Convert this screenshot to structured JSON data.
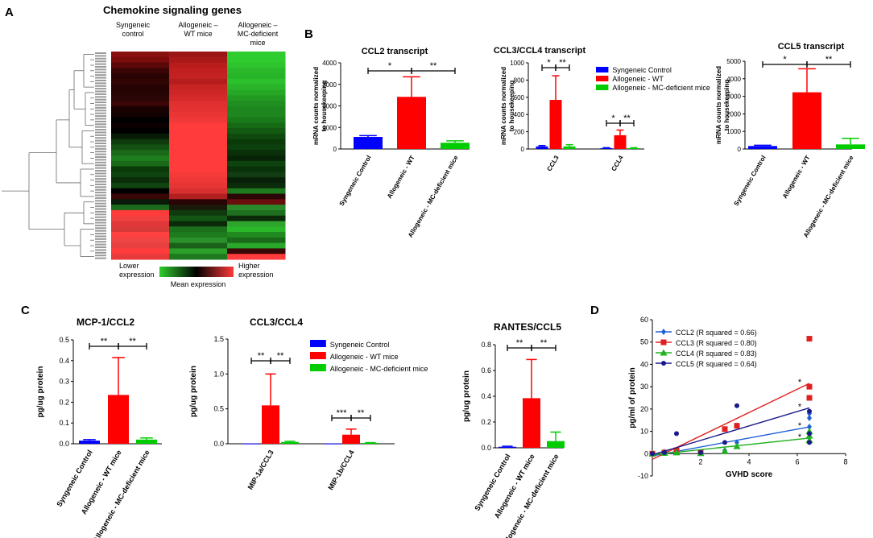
{
  "panels": [
    {
      "label": "A",
      "title": "Chemokine signaling genes",
      "columns": [
        "Syngeneic\ncontrol",
        "Allogeneic –\nWT mice",
        "Allogeneic –\nMC-deficient\nmice"
      ],
      "scale": {
        "low": "Lower\nexpression",
        "mid": "Mean expression",
        "high": "Higher\nexpression"
      },
      "colors": {
        "low": "#2ecc2e",
        "mid": "#000000",
        "high": "#ff3b3b"
      }
    },
    {
      "label": "B"
    },
    {
      "label": "C"
    },
    {
      "label": "D"
    }
  ],
  "legend_b": [
    "Syngeneic Control",
    "Allogeneic - WT",
    "Allogeneic - MC-deficient mice"
  ],
  "legend_c": [
    "Syngeneic Control",
    "Allogeneic - WT mice",
    "Allogeneic - MC-deficient mice"
  ],
  "colors": {
    "syn": "#0000ff",
    "wt": "#ff0000",
    "mc": "#00cc00"
  },
  "chart_data": [
    {
      "id": "A",
      "type": "heatmap",
      "title": "Chemokine signaling genes",
      "columns": [
        "Syngeneic control",
        "Allogeneic – WT mice",
        "Allogeneic – MC-deficient mice"
      ],
      "column_colors": [
        [
          "#8a0f0f",
          "#7a0c0c",
          "#5a0808",
          "#3a0505",
          "#2a0404",
          "#320505",
          "#260303",
          "#240404",
          "#2c0606",
          "#3a0606",
          "#1a0202",
          "#140202",
          "#000000",
          "#0a0000",
          "#000000",
          "#061a06",
          "#0e3a0e",
          "#145214",
          "#1a6a1a",
          "#1e7e1e",
          "#1a6a1a",
          "#0a3a0a",
          "#0e420e",
          "#0a2e0a",
          "#104410",
          "#000000",
          "#3a0707",
          "#0a1a0a",
          "#1c6a1c",
          "#ff3b3b",
          "#f24040",
          "#e03838",
          "#d83a3a",
          "#ff4040",
          "#f04545",
          "#e84040",
          "#ff3b3b",
          "#e83a3a"
        ],
        [
          "#9a1515",
          "#a81818",
          "#b81c1c",
          "#c22020",
          "#c42222",
          "#b51c1c",
          "#c82424",
          "#cc2626",
          "#d42a2a",
          "#e03030",
          "#e43232",
          "#ea3535",
          "#f03838",
          "#ff3b3b",
          "#ff3b3b",
          "#ff3b3b",
          "#ff3b3b",
          "#ff3b3b",
          "#ff3b3b",
          "#ff3b3b",
          "#ff3b3b",
          "#ff3b3b",
          "#f53a3a",
          "#ee3838",
          "#e63535",
          "#d83030",
          "#b02020",
          "#2a0505",
          "#1a1a0a",
          "#0e3a0e",
          "#145514",
          "#0a2a0a",
          "#1c701c",
          "#1e7a1e",
          "#2a902a",
          "#1a601a",
          "#2aa02a",
          "#1e7a1e"
        ],
        [
          "#2ecc2e",
          "#2ecc2e",
          "#2dc42d",
          "#2ab82a",
          "#28b428",
          "#2cc02c",
          "#2ab42a",
          "#26a826",
          "#229a22",
          "#208e20",
          "#1e861e",
          "#1e861e",
          "#1a7a1a",
          "#166a16",
          "#125a12",
          "#0e4a0e",
          "#0a3a0a",
          "#0c400c",
          "#0a300a",
          "#082408",
          "#0e420e",
          "#0a320a",
          "#123c12",
          "#082008",
          "#0a2a0a",
          "#1e7a1e",
          "#2a0606",
          "#6a0e0e",
          "#2a8a2a",
          "#1e701e",
          "#0a2a0a",
          "#2ea42e",
          "#2ab82a",
          "#208a20",
          "#1a6a1a",
          "#2aa82a",
          "#3a0808",
          "#ff3b3b"
        ]
      ]
    },
    {
      "id": "B1",
      "type": "bar",
      "title": "CCL2 transcript",
      "ylabel": "mRNA counts normalized\nto housekeeping",
      "ylim": [
        0,
        4000
      ],
      "yticks": [
        0,
        1000,
        2000,
        3000,
        4000
      ],
      "categories": [
        "Syngeneic Control",
        "Allogeneic - WT",
        "Allogeneic - MC-deficient mice"
      ],
      "values": [
        560,
        2420,
        290
      ],
      "errors": [
        60,
        930,
        90
      ],
      "significance": [
        {
          "from": 0,
          "to": 1,
          "text": "*"
        },
        {
          "from": 1,
          "to": 2,
          "text": "**"
        }
      ]
    },
    {
      "id": "B2",
      "type": "bar",
      "title": "CCL3/CCL4 transcript",
      "ylabel": "mRNA counts normalized\nto housekeeping",
      "ylim": [
        0,
        1000
      ],
      "yticks": [
        0,
        200,
        400,
        600,
        800,
        1000
      ],
      "categories": [
        "CCL3",
        "CCL4"
      ],
      "series": [
        {
          "name": "Syngeneic Control",
          "values": [
            30,
            10
          ],
          "errors": [
            10,
            5
          ]
        },
        {
          "name": "Allogeneic - WT",
          "values": [
            570,
            160
          ],
          "errors": [
            280,
            60
          ]
        },
        {
          "name": "Allogeneic - MC-deficient mice",
          "values": [
            30,
            10
          ],
          "errors": [
            20,
            5
          ]
        }
      ],
      "significance": [
        {
          "group": 0,
          "from": 0,
          "to": 1,
          "text": "*"
        },
        {
          "group": 0,
          "from": 1,
          "to": 2,
          "text": "**"
        },
        {
          "group": 1,
          "from": 0,
          "to": 1,
          "text": "*"
        },
        {
          "group": 1,
          "from": 1,
          "to": 2,
          "text": "**"
        }
      ]
    },
    {
      "id": "B3",
      "type": "bar",
      "title": "CCL5 transcript",
      "ylabel": "mRNA counts normalized\nto housekeeping",
      "ylim": [
        0,
        5000
      ],
      "yticks": [
        0,
        1000,
        2000,
        3000,
        4000,
        5000
      ],
      "categories": [
        "Syngeneic Control",
        "Allogeneic - WT",
        "Allogeneic - MC-deficient mice"
      ],
      "values": [
        170,
        3230,
        260
      ],
      "errors": [
        40,
        1340,
        350
      ],
      "significance": [
        {
          "from": 0,
          "to": 1,
          "text": "*"
        },
        {
          "from": 1,
          "to": 2,
          "text": "**"
        }
      ]
    },
    {
      "id": "C1",
      "type": "bar",
      "title": "MCP-1/CCL2",
      "ylabel": "pg/ug protein",
      "ylim": [
        0,
        0.5
      ],
      "yticks": [
        "0.0",
        "0.1",
        "0.2",
        "0.3",
        "0.4",
        "0.5"
      ],
      "categories": [
        "Syngeneic Control",
        "Allogeneic - WT mice",
        "Allogeneic - MC-deficient mice"
      ],
      "values": [
        0.015,
        0.235,
        0.02
      ],
      "errors": [
        0.005,
        0.18,
        0.008
      ],
      "significance": [
        {
          "from": 0,
          "to": 1,
          "text": "**"
        },
        {
          "from": 1,
          "to": 2,
          "text": "**"
        }
      ]
    },
    {
      "id": "C2",
      "type": "bar",
      "title": "CCL3/CCL4",
      "ylabel": "pg/ug protein",
      "ylim": [
        0,
        1.5
      ],
      "yticks": [
        "0.0",
        "0.5",
        "1.0",
        "1.5"
      ],
      "categories": [
        "MIP-1a/CCL3",
        "MIP-1b/CCL4"
      ],
      "series": [
        {
          "name": "Syngeneic Control",
          "values": [
            0.004,
            0.004
          ],
          "errors": [
            0,
            0
          ]
        },
        {
          "name": "Allogeneic - WT mice",
          "values": [
            0.55,
            0.13
          ],
          "errors": [
            0.45,
            0.08
          ]
        },
        {
          "name": "Allogeneic - MC-deficient mice",
          "values": [
            0.025,
            0.012
          ],
          "errors": [
            0.01,
            0.004
          ]
        }
      ],
      "significance": [
        {
          "group": 0,
          "from": 0,
          "to": 1,
          "text": "**"
        },
        {
          "group": 0,
          "from": 1,
          "to": 2,
          "text": "**"
        },
        {
          "group": 1,
          "from": 0,
          "to": 1,
          "text": "***"
        },
        {
          "group": 1,
          "from": 1,
          "to": 2,
          "text": "**"
        }
      ]
    },
    {
      "id": "C3",
      "type": "bar",
      "title": "RANTES/CCL5",
      "ylabel": "pg/ug protein",
      "ylim": [
        0,
        0.8
      ],
      "yticks": [
        "0.0",
        "0.2",
        "0.4",
        "0.6",
        "0.8"
      ],
      "categories": [
        "Syngeneic Control",
        "Allogeneic - WT mice",
        "Allogeneic - MC-deficient mice"
      ],
      "values": [
        0.008,
        0.385,
        0.052
      ],
      "errors": [
        0.004,
        0.3,
        0.07
      ],
      "significance": [
        {
          "from": 0,
          "to": 1,
          "text": "**"
        },
        {
          "from": 1,
          "to": 2,
          "text": "**"
        }
      ]
    },
    {
      "id": "D",
      "type": "scatter",
      "xlabel": "GVHD score",
      "ylabel": "pg/ml of protein",
      "xlim": [
        0,
        8
      ],
      "ylim": [
        -10,
        60
      ],
      "xticks": [
        2,
        4,
        6,
        8
      ],
      "yticks": [
        -10,
        0,
        10,
        20,
        30,
        40,
        50,
        60
      ],
      "annotation": "*",
      "series": [
        {
          "name": "CCL2 (R squared = 0.66)",
          "color": "#1f5fd6",
          "marker": "diamond",
          "points": [
            [
              0,
              0
            ],
            [
              0.5,
              0.8
            ],
            [
              1,
              1
            ],
            [
              2,
              0.3
            ],
            [
              3,
              1.5
            ],
            [
              3.5,
              5
            ],
            [
              6.5,
              12
            ],
            [
              6.5,
              16
            ],
            [
              6.5,
              18
            ]
          ],
          "fit": [
            [
              0,
              -1
            ],
            [
              6.5,
              12
            ]
          ]
        },
        {
          "name": "CCL3 (R squared = 0.80)",
          "color": "#e02020",
          "marker": "square",
          "points": [
            [
              0,
              0
            ],
            [
              0.5,
              0.5
            ],
            [
              1,
              1.5
            ],
            [
              2,
              0.5
            ],
            [
              3,
              11
            ],
            [
              3.5,
              12.5
            ],
            [
              6.5,
              25
            ],
            [
              6.5,
              30
            ],
            [
              6.5,
              51.5
            ]
          ],
          "fit": [
            [
              0,
              -2.5
            ],
            [
              6.5,
              31.5
            ]
          ]
        },
        {
          "name": "CCL4 (R squared = 0.83)",
          "color": "#20b020",
          "marker": "triangle",
          "points": [
            [
              0,
              0
            ],
            [
              0.5,
              0.3
            ],
            [
              1,
              0.5
            ],
            [
              2,
              0.2
            ],
            [
              3,
              1.2
            ],
            [
              3.5,
              3.3
            ],
            [
              6.5,
              6
            ],
            [
              6.5,
              8
            ],
            [
              6.5,
              10
            ]
          ],
          "fit": [
            [
              0,
              -0.5
            ],
            [
              6.5,
              7
            ]
          ]
        },
        {
          "name": "CCL5 (R squared = 0.64)",
          "color": "#1a1a8a",
          "marker": "circle",
          "points": [
            [
              0,
              0
            ],
            [
              0.5,
              0.5
            ],
            [
              1,
              9
            ],
            [
              2,
              0.5
            ],
            [
              3,
              5
            ],
            [
              3.5,
              21.5
            ],
            [
              6.5,
              5
            ],
            [
              6.5,
              9
            ],
            [
              6.5,
              19
            ]
          ],
          "fit": [
            [
              0,
              -0.5
            ],
            [
              6.5,
              20.5
            ]
          ]
        }
      ]
    }
  ]
}
